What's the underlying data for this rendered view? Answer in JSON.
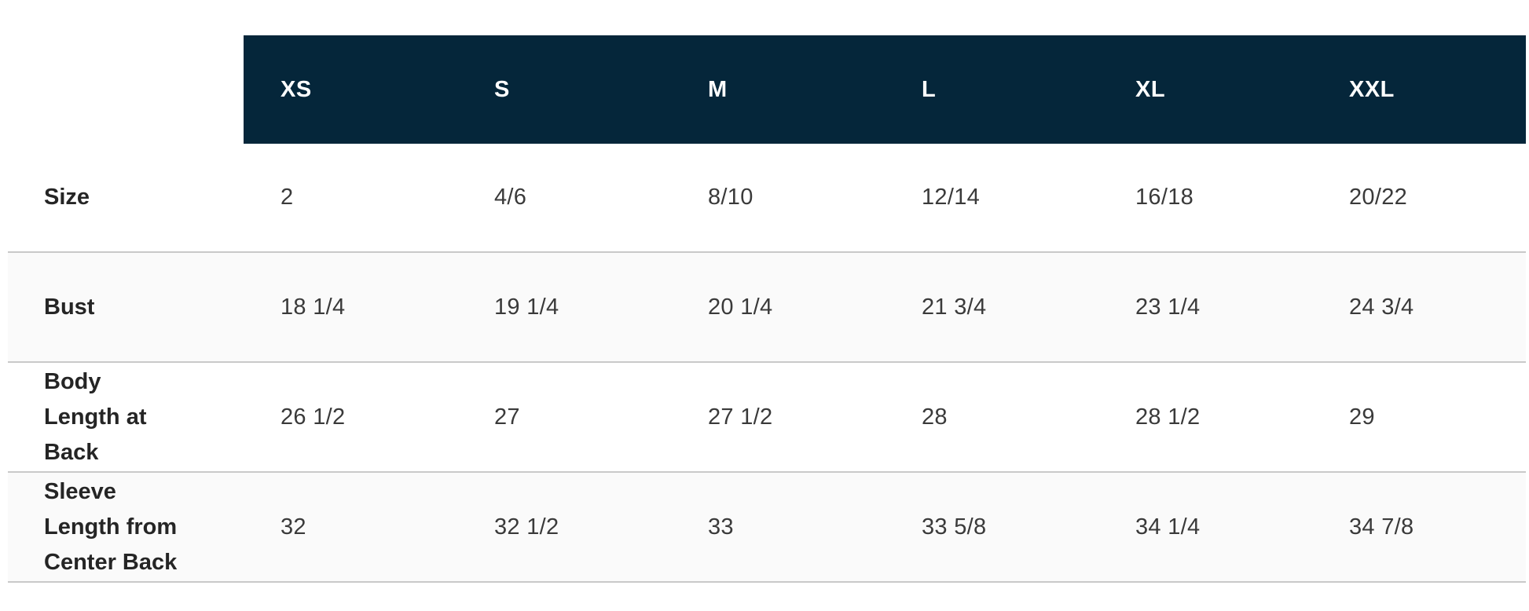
{
  "colors": {
    "header_background": "#05263a",
    "header_text": "#ffffff",
    "shaded_row_background": "#fafafa",
    "divider": "#c9c9c9",
    "label_text": "#252525",
    "value_text": "#3a3a3a",
    "page_background": "#ffffff"
  },
  "size_chart": {
    "columns": [
      "XS",
      "S",
      "M",
      "L",
      "XL",
      "XXL"
    ],
    "rows": [
      {
        "label": "Size",
        "values": [
          "2",
          "4/6",
          "8/10",
          "12/14",
          "16/18",
          "20/22"
        ],
        "shaded": false
      },
      {
        "label": "Bust",
        "values": [
          "18 1/4",
          "19 1/4",
          "20 1/4",
          "21 3/4",
          "23 1/4",
          "24 3/4"
        ],
        "shaded": true
      },
      {
        "label": "Body Length at Back",
        "values": [
          "26 1/2",
          "27",
          "27 1/2",
          "28",
          "28 1/2",
          "29"
        ],
        "shaded": false
      },
      {
        "label": "Sleeve Length from Center Back",
        "values": [
          "32",
          "32 1/2",
          "33",
          "33 5/8",
          "34 1/4",
          "34 7/8"
        ],
        "shaded": true
      }
    ]
  }
}
